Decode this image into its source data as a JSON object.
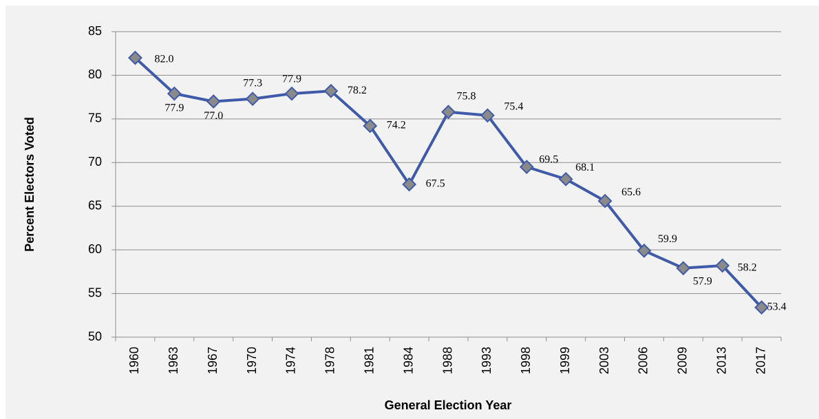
{
  "chart_data": {
    "type": "line",
    "x_label": "General Election Year",
    "y_label": "Percent  Electors Voted",
    "categories": [
      "1960",
      "1963",
      "1967",
      "1970",
      "1974",
      "1978",
      "1981",
      "1984",
      "1988",
      "1993",
      "1998",
      "1999",
      "2003",
      "2006",
      "2009",
      "2013",
      "2017"
    ],
    "series": [
      {
        "name": "Percent Electors Voted",
        "color": "#3f5aa8",
        "values": [
          82.0,
          77.9,
          77.0,
          77.3,
          77.9,
          78.2,
          74.2,
          67.5,
          75.8,
          75.4,
          69.5,
          68.1,
          65.6,
          59.9,
          57.9,
          58.2,
          53.4
        ],
        "value_labels": [
          "82.0",
          "77.9",
          "77.0",
          "77.3",
          "77.9",
          "78.2",
          "74.2",
          "67.5",
          "75.8",
          "75.4",
          "69.5",
          "68.1",
          "65.6",
          "59.9",
          "57.9",
          "58.2",
          "53.4"
        ]
      }
    ],
    "marker_color": "#8a8a8a",
    "ylim": [
      50,
      85
    ],
    "yticks": [
      50,
      55,
      60,
      65,
      70,
      75,
      80,
      85
    ],
    "grid": true
  }
}
